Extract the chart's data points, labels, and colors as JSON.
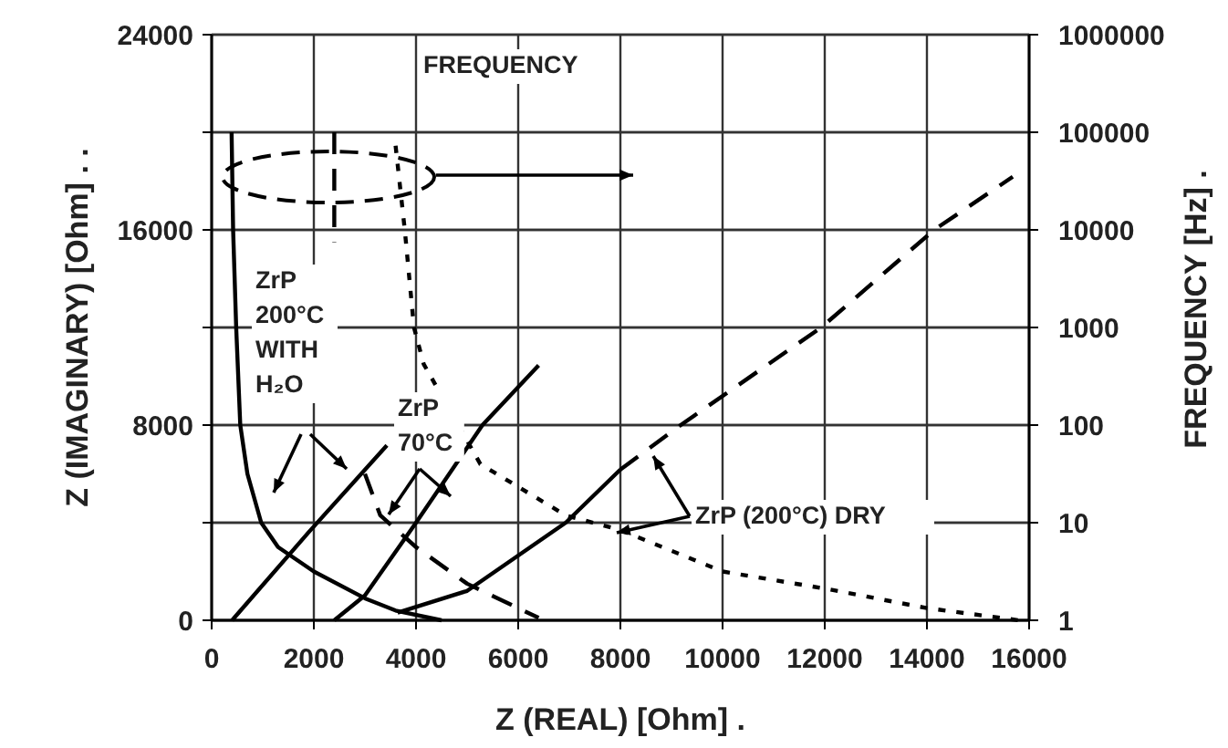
{
  "chart_data": {
    "type": "line",
    "xlabel": "Z (REAL) [Ohm]  .",
    "ylabel": "Z (IMAGINARY) [Ohm]  . .",
    "y2label": "FREQUENCY [Hz]  .",
    "xlim": [
      0,
      16000
    ],
    "xticks": [
      0,
      2000,
      4000,
      6000,
      8000,
      10000,
      12000,
      14000,
      16000
    ],
    "ylim": [
      0,
      24000
    ],
    "yticks": [
      0,
      {
        "value": 4000,
        "label": null
      },
      8000,
      {
        "value": 12000,
        "label": null
      },
      16000,
      {
        "value": 20000,
        "label": null
      },
      24000
    ],
    "y2lim": [
      1,
      1000000
    ],
    "y2ticks": [
      1,
      10,
      100,
      1000,
      10000,
      100000,
      1000000
    ],
    "log": "y2",
    "grid": true,
    "series": [
      {
        "color": "#000000",
        "line_style": "solid",
        "x": [
          390,
          420,
          480,
          560,
          700,
          970,
          1300,
          2000,
          3000,
          3600,
          4500
        ],
        "values": [
          20000,
          16000,
          12000,
          8000,
          6000,
          4000,
          3000,
          2000,
          900,
          400,
          0
        ]
      },
      {
        "color": "#000000",
        "line_style": "dashed",
        "x": [
          2400,
          2400,
          2700,
          3000,
          3300,
          4000,
          5000,
          6400
        ],
        "values": [
          20000,
          15500,
          null,
          6000,
          4300,
          3000,
          1500,
          100
        ]
      },
      {
        "color": "#000000",
        "line_style": "dotted",
        "x": [
          3600,
          3780,
          3960,
          4150,
          5260,
          6930,
          8000,
          10000,
          12000,
          14000,
          15800
        ],
        "values": [
          19450,
          16000,
          12000,
          10500,
          6400,
          4300,
          3700,
          2000,
          1300,
          500,
          0
        ]
      },
      {
        "color": "#000000",
        "line_style": "solid",
        "axis": "y2",
        "x": [
          400,
          1900,
          3430
        ],
        "values": [
          1,
          8,
          62
        ]
      },
      {
        "color": "#000000",
        "line_style": "solid",
        "axis": "y2",
        "x": [
          2400,
          3000,
          4000,
          5300,
          6400
        ],
        "values": [
          1,
          1.8,
          10,
          100,
          410
        ]
      },
      {
        "color": "#000000",
        "line_style": "solid",
        "axis": "y2",
        "x": [
          3640,
          5000,
          6930,
          8000
        ],
        "values": [
          1.2,
          2,
          10,
          35
        ]
      },
      {
        "color": "#000000",
        "line_style": "dashed",
        "axis": "y2",
        "x": [
          8000,
          9180,
          11930,
          14140,
          15680
        ],
        "values": [
          35,
          100,
          1000,
          10000,
          35000
        ]
      }
    ],
    "annotations": [
      "FREQUENCY",
      "ZrP\n200°C\nWITH\nH₂O",
      "ZrP\n70°C",
      "ZrP (200°C) DRY"
    ]
  }
}
